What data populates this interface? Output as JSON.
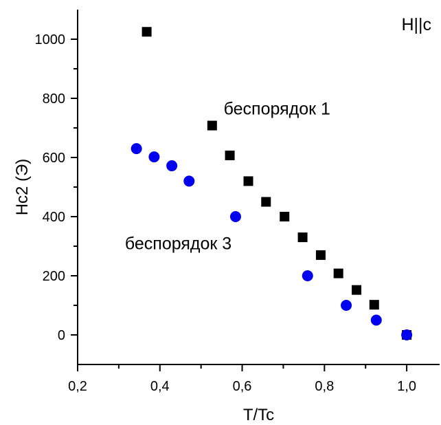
{
  "chart_data": {
    "type": "scatter",
    "xlabel": "T/Tc",
    "ylabel": "Hc2 (Э)",
    "xlim": [
      0.2,
      1.08
    ],
    "ylim": [
      -100,
      1100
    ],
    "x_ticks": [
      0.2,
      0.4,
      0.6,
      0.8,
      1.0
    ],
    "x_tick_labels": [
      "0,2",
      "0,4",
      "0,6",
      "0,8",
      "1,0"
    ],
    "x_minor_ticks": [
      0.3,
      0.5,
      0.7,
      0.9
    ],
    "y_ticks": [
      0,
      200,
      400,
      600,
      800,
      1000
    ],
    "y_tick_labels": [
      "0",
      "200",
      "400",
      "600",
      "800",
      "1000"
    ],
    "y_minor_ticks": [
      100,
      300,
      500,
      700,
      900
    ],
    "grid": false,
    "annotations": [
      {
        "text": "H||c",
        "x": 1.06,
        "y": 1030,
        "anchor": "end"
      },
      {
        "text": "беспорядок 1",
        "x": 0.555,
        "y": 745,
        "anchor": "start"
      },
      {
        "text": "беспорядок 3",
        "x": 0.315,
        "y": 290,
        "anchor": "start"
      }
    ],
    "series": [
      {
        "marker": "square",
        "color": "#000000",
        "points": [
          [
            0.368,
            1025
          ],
          [
            0.527,
            708
          ],
          [
            0.57,
            607
          ],
          [
            0.615,
            520
          ],
          [
            0.658,
            450
          ],
          [
            0.703,
            400
          ],
          [
            0.747,
            330
          ],
          [
            0.791,
            270
          ],
          [
            0.834,
            208
          ],
          [
            0.878,
            152
          ],
          [
            0.921,
            102
          ],
          [
            1.0,
            0
          ]
        ]
      },
      {
        "marker": "circle",
        "color": "#0000ee",
        "points": [
          [
            0.343,
            630
          ],
          [
            0.386,
            602
          ],
          [
            0.429,
            572
          ],
          [
            0.471,
            520
          ],
          [
            0.584,
            400
          ],
          [
            0.759,
            200
          ],
          [
            0.853,
            100
          ],
          [
            0.926,
            50
          ],
          [
            1.0,
            0
          ]
        ]
      }
    ]
  }
}
